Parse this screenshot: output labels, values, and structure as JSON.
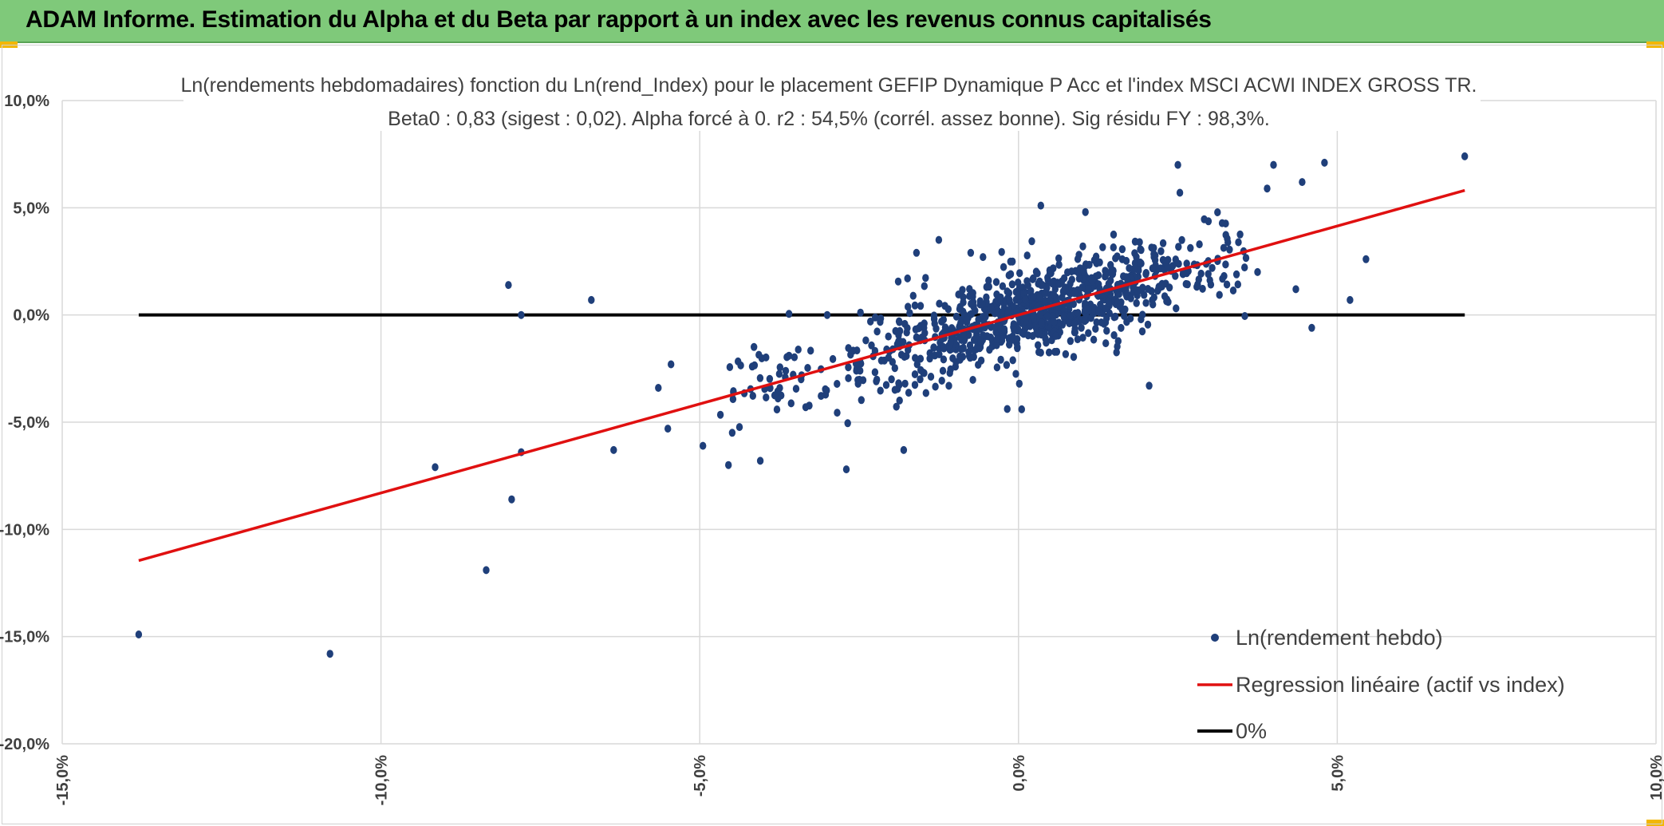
{
  "header": {
    "title": "ADAM Informe. Estimation du Alpha et du Beta par rapport à un index avec les revenus connus capitalisés"
  },
  "colors": {
    "header_bg": "#7fc97a",
    "scatter": "#1f3f7a",
    "regression": "#e01010",
    "zero_line": "#000000",
    "grid": "#d9d9d9"
  },
  "chart_data": {
    "type": "scatter",
    "title": "Ln(rendements hebdomadaires) fonction du Ln(rend_Index) pour le placement GEFIP Dynamique P Acc et l'index MSCI ACWI INDEX GROSS TR.",
    "subtitle": "Beta0 : 0,83 (sigest : 0,02). Alpha forcé à 0. r2 : 54,5% (corrél. assez bonne). Sig résidu FY : 98,3%.",
    "xlim": [
      -15,
      10
    ],
    "ylim": [
      -20,
      10
    ],
    "x_ticks": [
      "-15,0%",
      "-10,0%",
      "-5,0%",
      "0,0%",
      "5,0%",
      "10,0%"
    ],
    "y_ticks": [
      "10,0%",
      "5,0%",
      "0,0%",
      "-5,0%",
      "-10,0%",
      "-15,0%",
      "-20,0%"
    ],
    "grid": true,
    "legend_position": "bottom-right",
    "legend": [
      {
        "name": "Ln(rendement hebdo)",
        "kind": "marker"
      },
      {
        "name": "Regression linéaire (actif vs index)",
        "kind": "line-red"
      },
      {
        "name": "0%",
        "kind": "line-black"
      }
    ],
    "regression": {
      "slope": 0.83,
      "intercept": 0,
      "x_range": [
        -13.8,
        7.0
      ]
    },
    "zero_line": {
      "y": 0,
      "x_range": [
        -13.8,
        7.0
      ]
    },
    "outliers": [
      {
        "x": -13.8,
        "y": -14.9
      },
      {
        "x": -10.8,
        "y": -15.8
      },
      {
        "x": -8.35,
        "y": -11.9
      },
      {
        "x": -7.95,
        "y": -8.6
      },
      {
        "x": -7.8,
        "y": -6.4
      },
      {
        "x": -9.15,
        "y": -7.1
      },
      {
        "x": -8.0,
        "y": 1.4
      },
      {
        "x": -7.8,
        "y": 0.0
      },
      {
        "x": -6.7,
        "y": 0.7
      },
      {
        "x": -6.35,
        "y": -6.3
      },
      {
        "x": -5.65,
        "y": -3.4
      },
      {
        "x": -5.45,
        "y": -2.3
      },
      {
        "x": -5.5,
        "y": -5.3
      },
      {
        "x": -4.95,
        "y": -6.1
      },
      {
        "x": -4.55,
        "y": -7.0
      },
      {
        "x": -4.05,
        "y": -6.8
      },
      {
        "x": -2.7,
        "y": -7.2
      },
      {
        "x": -1.8,
        "y": -6.3
      },
      {
        "x": 0.05,
        "y": -4.4
      },
      {
        "x": 2.5,
        "y": 7.0
      },
      {
        "x": 4.0,
        "y": 7.0
      },
      {
        "x": 4.8,
        "y": 7.1
      },
      {
        "x": 7.0,
        "y": 7.4
      },
      {
        "x": 3.9,
        "y": 5.9
      },
      {
        "x": 4.45,
        "y": 6.2
      },
      {
        "x": 5.45,
        "y": 2.6
      },
      {
        "x": 5.2,
        "y": 0.7
      },
      {
        "x": 4.6,
        "y": -0.6
      },
      {
        "x": 4.35,
        "y": 1.2
      },
      {
        "x": 2.05,
        "y": -3.3
      },
      {
        "x": 3.75,
        "y": 2.0
      },
      {
        "x": 3.55,
        "y": -0.05
      },
      {
        "x": -3.6,
        "y": 0.05
      },
      {
        "x": -3.0,
        "y": 0.0
      },
      {
        "x": -1.6,
        "y": 2.9
      },
      {
        "x": -1.25,
        "y": 3.5
      },
      {
        "x": -0.75,
        "y": 2.9
      },
      {
        "x": 0.35,
        "y": 5.1
      },
      {
        "x": 1.05,
        "y": 4.8
      }
    ],
    "cluster": {
      "count": 900,
      "x_center": 0.3,
      "x_sd": 1.35,
      "slope": 0.83,
      "residual_sd": 1.05,
      "seed": 12345
    }
  }
}
